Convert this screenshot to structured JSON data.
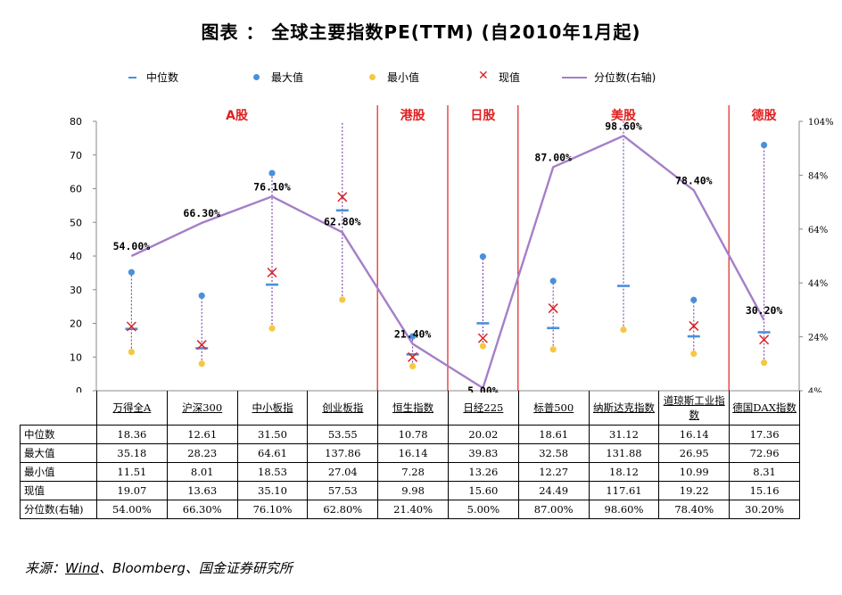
{
  "title": "图表 ： 全球主要指数PE(TTM) (自2010年1月起)",
  "legend": [
    {
      "label": "中位数",
      "symbol": "dash",
      "color": "#4a90d9"
    },
    {
      "label": "最大值",
      "symbol": "dot",
      "color": "#4a90d9"
    },
    {
      "label": "最小值",
      "symbol": "dot",
      "color": "#f5c842"
    },
    {
      "label": "现值",
      "symbol": "cross",
      "color": "#e02020"
    },
    {
      "label": "分位数(右轴)",
      "symbol": "line",
      "color": "#a57fc9"
    }
  ],
  "chart_data": {
    "type": "line",
    "categories": [
      "万得全A",
      "沪深300",
      "中小板指",
      "创业板指",
      "恒生指数",
      "日经225",
      "标普500",
      "纳斯达克指数",
      "道琼斯工业指数",
      "德国DAX指数"
    ],
    "y_left": {
      "ylim": [
        0,
        80
      ],
      "ticks": [
        "0",
        "10",
        "20",
        "30",
        "40",
        "50",
        "60",
        "70",
        "80"
      ]
    },
    "y_right": {
      "ylim": [
        4,
        104
      ],
      "ticks": [
        "4%",
        "24%",
        "44%",
        "64%",
        "84%",
        "104%"
      ]
    },
    "series": [
      {
        "name": "中位数",
        "values": [
          18.36,
          12.61,
          31.5,
          53.55,
          10.78,
          20.02,
          18.61,
          31.12,
          16.14,
          17.36
        ]
      },
      {
        "name": "最大值",
        "values": [
          35.18,
          28.23,
          64.61,
          137.86,
          16.14,
          39.83,
          32.58,
          131.88,
          26.95,
          72.96
        ]
      },
      {
        "name": "最小值",
        "values": [
          11.51,
          8.01,
          18.53,
          27.04,
          7.28,
          13.26,
          12.27,
          18.12,
          10.99,
          8.31
        ]
      },
      {
        "name": "现值",
        "values": [
          19.07,
          13.63,
          35.1,
          57.53,
          9.98,
          15.6,
          24.49,
          117.61,
          19.22,
          15.16
        ]
      },
      {
        "name": "分位数(右轴)",
        "values": [
          54.0,
          66.3,
          76.1,
          62.8,
          21.4,
          5.0,
          87.0,
          98.6,
          78.4,
          30.2
        ]
      }
    ],
    "percentile_labels": [
      "54.00%",
      "66.30%",
      "76.10%",
      "62.80%",
      "21.40%",
      "5.00%",
      "87.00%",
      "98.60%",
      "78.40%",
      "30.20%"
    ],
    "regions": [
      {
        "name": "A股",
        "from": 0,
        "to": 3
      },
      {
        "name": "港股",
        "from": 4,
        "to": 4
      },
      {
        "name": "日股",
        "from": 5,
        "to": 5
      },
      {
        "name": "美股",
        "from": 6,
        "to": 8
      },
      {
        "name": "德股",
        "from": 9,
        "to": 9
      }
    ],
    "region_color": "#e02020"
  },
  "table": {
    "headers": [
      "万得全A",
      "沪深300",
      "中小板指",
      "创业板指",
      "恒生指数",
      "日经225",
      "标普500",
      "纳斯达克指数",
      "道琼斯工业指数",
      "德国DAX指数"
    ],
    "rows": [
      {
        "label": "中位数",
        "cells": [
          "18.36",
          "12.61",
          "31.50",
          "53.55",
          "10.78",
          "20.02",
          "18.61",
          "31.12",
          "16.14",
          "17.36"
        ]
      },
      {
        "label": "最大值",
        "cells": [
          "35.18",
          "28.23",
          "64.61",
          "137.86",
          "16.14",
          "39.83",
          "32.58",
          "131.88",
          "26.95",
          "72.96"
        ]
      },
      {
        "label": "最小值",
        "cells": [
          "11.51",
          "8.01",
          "18.53",
          "27.04",
          "7.28",
          "13.26",
          "12.27",
          "18.12",
          "10.99",
          "8.31"
        ]
      },
      {
        "label": "现值",
        "cells": [
          "19.07",
          "13.63",
          "35.10",
          "57.53",
          "9.98",
          "15.60",
          "24.49",
          "117.61",
          "19.22",
          "15.16"
        ]
      },
      {
        "label": "分位数(右轴)",
        "cells": [
          "54.00%",
          "66.30%",
          "76.10%",
          "62.80%",
          "21.40%",
          "5.00%",
          "87.00%",
          "98.60%",
          "78.40%",
          "30.20%"
        ]
      }
    ]
  },
  "source": {
    "prefix": "来源：",
    "wind": "Wind",
    "rest": "、Bloomberg、国金证券研究所"
  }
}
